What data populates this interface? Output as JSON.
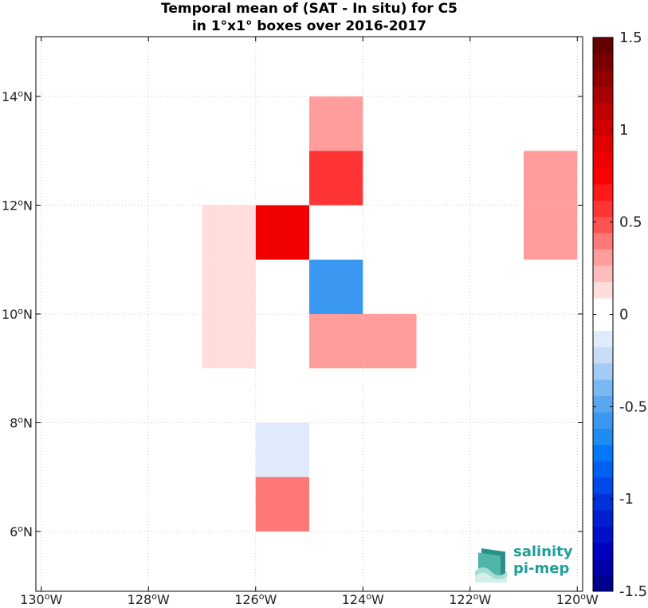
{
  "chart_data": {
    "type": "heatmap",
    "title": "Temporal mean of (SAT - In situ) for C5",
    "subtitle": "in 1°x1° boxes over 2016-2017",
    "x_ticks": [
      {
        "value": -130,
        "label": "130°W"
      },
      {
        "value": -128,
        "label": "128°W"
      },
      {
        "value": -126,
        "label": "126°W"
      },
      {
        "value": -124,
        "label": "124°W"
      },
      {
        "value": -122,
        "label": "122°W"
      },
      {
        "value": -120,
        "label": "120°W"
      }
    ],
    "y_ticks": [
      {
        "value": 6,
        "label": "6°N"
      },
      {
        "value": 8,
        "label": "8°N"
      },
      {
        "value": 10,
        "label": "10°N"
      },
      {
        "value": 12,
        "label": "12°N"
      },
      {
        "value": 14,
        "label": "14°N"
      }
    ],
    "xlim": [
      -130.1,
      -119.9
    ],
    "ylim": [
      4.9,
      15.1
    ],
    "grid": true,
    "cells": [
      {
        "lon": [
          -125,
          -124
        ],
        "lat": [
          13,
          14
        ],
        "value": 0.3
      },
      {
        "lon": [
          -125,
          -124
        ],
        "lat": [
          12,
          13
        ],
        "value": 0.6
      },
      {
        "lon": [
          -126,
          -125
        ],
        "lat": [
          11,
          12
        ],
        "value": 0.8
      },
      {
        "lon": [
          -127,
          -126
        ],
        "lat": [
          11,
          12
        ],
        "value": 0.15
      },
      {
        "lon": [
          -127,
          -126
        ],
        "lat": [
          10,
          11
        ],
        "value": 0.15
      },
      {
        "lon": [
          -127,
          -126
        ],
        "lat": [
          9,
          10
        ],
        "value": 0.15
      },
      {
        "lon": [
          -125,
          -124
        ],
        "lat": [
          10,
          11
        ],
        "value": -0.55
      },
      {
        "lon": [
          -125,
          -124
        ],
        "lat": [
          9,
          10
        ],
        "value": 0.3
      },
      {
        "lon": [
          -124,
          -123
        ],
        "lat": [
          9,
          10
        ],
        "value": 0.3
      },
      {
        "lon": [
          -121,
          -120
        ],
        "lat": [
          12,
          13
        ],
        "value": 0.3
      },
      {
        "lon": [
          -121,
          -120
        ],
        "lat": [
          11,
          12
        ],
        "value": 0.3
      },
      {
        "lon": [
          -126,
          -125
        ],
        "lat": [
          7,
          8
        ],
        "value": -0.1
      },
      {
        "lon": [
          -126,
          -125
        ],
        "lat": [
          6,
          7
        ],
        "value": 0.4
      }
    ],
    "colorbar": {
      "min": -1.5,
      "max": 1.5,
      "ticks": [
        {
          "value": 1.5,
          "label": "1.5"
        },
        {
          "value": 1,
          "label": "1"
        },
        {
          "value": 0.5,
          "label": "0.5"
        },
        {
          "value": 0,
          "label": "0"
        },
        {
          "value": -0.5,
          "label": "-0.5"
        },
        {
          "value": -1,
          "label": "-1"
        },
        {
          "value": -1.5,
          "label": "-1.5"
        }
      ],
      "colors": [
        "#00008f",
        "#0000a8",
        "#0000bf",
        "#0010c8",
        "#0020d0",
        "#0030d8",
        "#0048e8",
        "#0060f0",
        "#0078f8",
        "#1e8cf0",
        "#3a98f0",
        "#5aa6ef",
        "#7ab8f4",
        "#a4cbf6",
        "#c8dcf8",
        "#dfeafb",
        "#ffffff",
        "#ffffff",
        "#ffdddd",
        "#ffbcbc",
        "#ff9d9d",
        "#ff7878",
        "#ff5252",
        "#ff3535",
        "#ff1a1a",
        "#ff0000",
        "#f00000",
        "#e00000",
        "#d00000",
        "#be0000",
        "#a80000",
        "#900000",
        "#7a0000",
        "#640000"
      ]
    }
  },
  "logo": {
    "line1": "salinity",
    "line2": "pi-mep"
  }
}
